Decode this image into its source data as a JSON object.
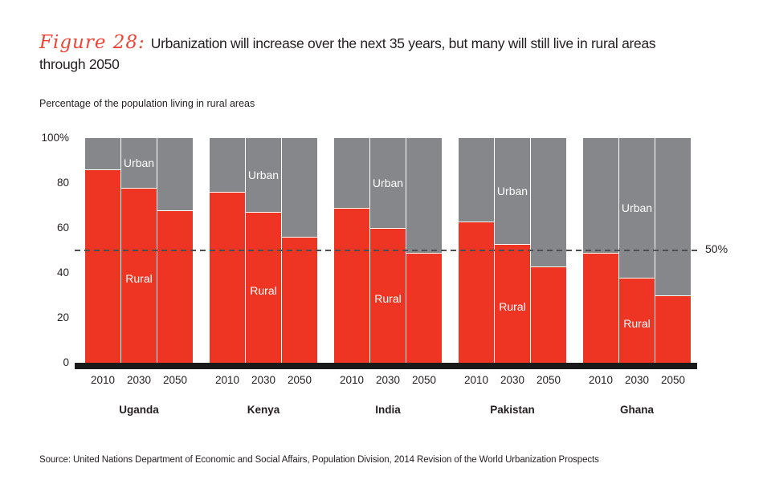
{
  "figure": {
    "label": "Figure 28:",
    "title_line1": "Urbanization will increase over the next 35 years, but many will still live in rural areas",
    "title_line2": "through 2050"
  },
  "subtitle": "Percentage of the population living in rural areas",
  "chart_data": {
    "type": "bar",
    "stacked": true,
    "title": "Urbanization will increase over the next 35 years, but many will still live in rural areas through 2050",
    "ylabel": "Percentage of the population living in rural areas",
    "ylim": [
      0,
      100
    ],
    "y_ticks": [
      "100%",
      "80",
      "60",
      "40",
      "20",
      "0"
    ],
    "years": [
      "2010",
      "2030",
      "2050"
    ],
    "groups": [
      {
        "country": "Uganda",
        "rural": [
          86,
          78,
          68
        ]
      },
      {
        "country": "Kenya",
        "rural": [
          76,
          67,
          56
        ]
      },
      {
        "country": "India",
        "rural": [
          69,
          60,
          49
        ]
      },
      {
        "country": "Pakistan",
        "rural": [
          63,
          53,
          43
        ]
      },
      {
        "country": "Ghana",
        "rural": [
          49,
          38,
          30
        ]
      }
    ],
    "segment_labels": {
      "urban": "Urban",
      "rural": "Rural"
    },
    "reference_line": {
      "value": 50,
      "label": "50%"
    },
    "colors": {
      "rural": "#ee3524",
      "urban": "#85878a",
      "baseline": "#1a1a1a"
    },
    "legend_position": "in-bar-labels",
    "grid": false
  },
  "source": "Source: United Nations Department of Economic and Social Affairs, Population Division, 2014 Revision of the World Urbanization Prospects"
}
